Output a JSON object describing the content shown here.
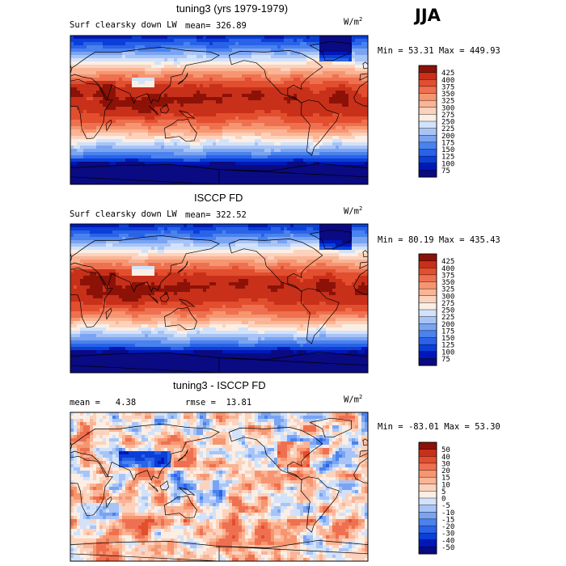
{
  "figure": {
    "season": "JJA"
  },
  "panels": [
    {
      "title": "tuning3 (yrs 1979-1979)",
      "variable": "Surf clearsky down LW",
      "stat_label": "mean=",
      "stat_value": "326.89",
      "units_base": "W/m",
      "units_exp": "2",
      "min_label": "Min =",
      "min_value": "53.31",
      "max_label": "Max =",
      "max_value": "449.93"
    },
    {
      "title": "ISCCP FD",
      "variable": "Surf clearsky down LW",
      "stat_label": "mean=",
      "stat_value": "322.52",
      "units_base": "W/m",
      "units_exp": "2",
      "min_label": "Min =",
      "min_value": "80.19",
      "max_label": "Max =",
      "max_value": "435.43"
    },
    {
      "title": "tuning3 - ISCCP FD",
      "mean_label": "mean =",
      "mean_value": "4.38",
      "rmse_label": "rmse =",
      "rmse_value": "13.81",
      "units_base": "W/m",
      "units_exp": "2",
      "min_label": "Min =",
      "min_value": "-83.01",
      "max_label": "Max =",
      "max_value": "53.30"
    }
  ],
  "chart_data": [
    {
      "type": "heatmap",
      "title": "tuning3 (yrs 1979-1979)",
      "subtitle": "Surf clearsky down LW",
      "mean": 326.89,
      "min": 53.31,
      "max": 449.93,
      "units": "W/m2",
      "season": "JJA",
      "colorbar_levels": [
        75,
        100,
        125,
        150,
        175,
        200,
        225,
        250,
        275,
        300,
        325,
        350,
        375,
        400,
        425
      ],
      "colorbar_colors": [
        "#0a0a82",
        "#0018b8",
        "#0a3fd8",
        "#2a62e8",
        "#4a82ee",
        "#7aa4f2",
        "#a8c4f6",
        "#d2e2fa",
        "#fbeee4",
        "#fcd2bc",
        "#fab496",
        "#f69670",
        "#ee7050",
        "#e24e2e",
        "#c8301a",
        "#8c1208"
      ]
    },
    {
      "type": "heatmap",
      "title": "ISCCP FD",
      "subtitle": "Surf clearsky down LW",
      "mean": 322.52,
      "min": 80.19,
      "max": 435.43,
      "units": "W/m2",
      "season": "JJA",
      "colorbar_levels": [
        75,
        100,
        125,
        150,
        175,
        200,
        225,
        250,
        275,
        300,
        325,
        350,
        375,
        400,
        425
      ],
      "colorbar_colors": [
        "#0a0a82",
        "#0018b8",
        "#0a3fd8",
        "#2a62e8",
        "#4a82ee",
        "#7aa4f2",
        "#a8c4f6",
        "#d2e2fa",
        "#fbeee4",
        "#fcd2bc",
        "#fab496",
        "#f69670",
        "#ee7050",
        "#e24e2e",
        "#c8301a",
        "#8c1208"
      ]
    },
    {
      "type": "heatmap",
      "title": "tuning3 - ISCCP FD",
      "mean": 4.38,
      "rmse": 13.81,
      "min": -83.01,
      "max": 53.3,
      "units": "W/m2",
      "season": "JJA",
      "colorbar_levels": [
        -50,
        -40,
        -30,
        -20,
        -15,
        -10,
        -5,
        0,
        5,
        10,
        15,
        20,
        30,
        40,
        50
      ],
      "colorbar_colors": [
        "#0a0a82",
        "#0018b8",
        "#0a3fd8",
        "#2a62e8",
        "#4a82ee",
        "#7aa4f2",
        "#a8c4f6",
        "#d2e2fa",
        "#fbeee4",
        "#fcd2bc",
        "#fab496",
        "#f69670",
        "#ee7050",
        "#e24e2e",
        "#c8301a",
        "#8c1208"
      ]
    }
  ]
}
